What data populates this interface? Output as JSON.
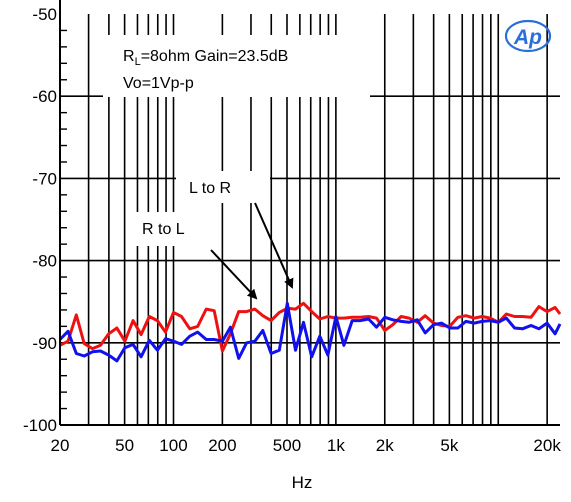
{
  "chart_data": {
    "type": "line",
    "xscale": "log",
    "xlim": [
      20,
      24000
    ],
    "ylim": [
      -100,
      -50
    ],
    "grid": true,
    "xlabel": "Hz",
    "ylabel": "",
    "x_ticks": [
      {
        "value": 20,
        "label": "20"
      },
      {
        "value": 50,
        "label": "50"
      },
      {
        "value": 100,
        "label": "100"
      },
      {
        "value": 200,
        "label": "200"
      },
      {
        "value": 500,
        "label": "500"
      },
      {
        "value": 1000,
        "label": "1k"
      },
      {
        "value": 2000,
        "label": "2k"
      },
      {
        "value": 5000,
        "label": "5k"
      },
      {
        "value": 20000,
        "label": "20k"
      }
    ],
    "y_ticks": [
      {
        "value": -50,
        "label": "-50"
      },
      {
        "value": -60,
        "label": "-60"
      },
      {
        "value": -70,
        "label": "-70"
      },
      {
        "value": -80,
        "label": "-80"
      },
      {
        "value": -90,
        "label": "-90"
      },
      {
        "value": -100,
        "label": "-100"
      }
    ],
    "annotations": {
      "condition_line1_prefix": "R",
      "condition_line1_sub": "L",
      "condition_line1_rest": "=8ohm Gain=23.5dB",
      "condition_line2": "Vo=1Vp-p",
      "label_l_to_r": "L to R",
      "label_r_to_l": "R to L",
      "logo": "Ap"
    },
    "series": [
      {
        "name": "R to L",
        "color": "#ee1111",
        "x": [
          20,
          22.4,
          25.2,
          28.2,
          31.7,
          35.5,
          39.9,
          44.8,
          50.2,
          56.4,
          63.2,
          71,
          79.6,
          89.3,
          100,
          112,
          126,
          141,
          159,
          178,
          200,
          224,
          252,
          282,
          317,
          355,
          399,
          448,
          502,
          564,
          632,
          710,
          796,
          893,
          1000,
          1120,
          1260,
          1410,
          1590,
          1780,
          2000,
          2240,
          2520,
          2820,
          3170,
          3550,
          3990,
          4480,
          5020,
          5640,
          6320,
          7100,
          7960,
          8930,
          10000,
          11200,
          12600,
          14100,
          15900,
          17800,
          20000,
          22400,
          24000
        ],
        "values": [
          -90.3,
          -89.8,
          -86.6,
          -90.1,
          -90.7,
          -90.3,
          -88.9,
          -88.2,
          -89.8,
          -87.3,
          -89.0,
          -86.8,
          -87.3,
          -88.7,
          -86.3,
          -86.8,
          -88.3,
          -88.0,
          -85.9,
          -86.1,
          -91.0,
          -88.9,
          -86.2,
          -86.2,
          -85.9,
          -86.7,
          -87.3,
          -86.3,
          -85.8,
          -85.9,
          -85.2,
          -86.2,
          -87.1,
          -86.8,
          -87.0,
          -87.0,
          -86.9,
          -86.9,
          -86.8,
          -87.0,
          -88.5,
          -87.8,
          -86.8,
          -87.0,
          -87.5,
          -86.7,
          -87.6,
          -87.9,
          -88.0,
          -86.9,
          -86.7,
          -87.0,
          -86.8,
          -87.0,
          -87.5,
          -86.5,
          -86.8,
          -86.8,
          -86.9,
          -85.6,
          -86.2,
          -85.7,
          -86.5
        ]
      },
      {
        "name": "L to R",
        "color": "#1111ee",
        "x": [
          20,
          22.4,
          25.2,
          28.2,
          31.7,
          35.5,
          39.9,
          44.8,
          50.2,
          56.4,
          63.2,
          71,
          79.6,
          89.3,
          100,
          112,
          126,
          141,
          159,
          178,
          200,
          224,
          252,
          282,
          317,
          355,
          399,
          448,
          502,
          564,
          632,
          710,
          796,
          893,
          1000,
          1120,
          1260,
          1410,
          1590,
          1780,
          2000,
          2240,
          2520,
          2820,
          3170,
          3550,
          3990,
          4480,
          5020,
          5640,
          6320,
          7100,
          7960,
          8930,
          10000,
          11200,
          12600,
          14100,
          15900,
          17800,
          20000,
          22400,
          24000
        ],
        "values": [
          -89.6,
          -88.6,
          -91.3,
          -91.6,
          -91.1,
          -91.0,
          -91.5,
          -92.2,
          -90.6,
          -90.2,
          -91.7,
          -89.7,
          -90.9,
          -89.5,
          -89.8,
          -90.2,
          -89.2,
          -88.7,
          -89.6,
          -89.6,
          -89.8,
          -88.1,
          -91.9,
          -90.0,
          -89.8,
          -88.5,
          -91.3,
          -90.9,
          -85.2,
          -90.9,
          -87.5,
          -91.7,
          -89.2,
          -91.5,
          -86.8,
          -90.3,
          -87.3,
          -87.3,
          -87.1,
          -88.1,
          -86.9,
          -87.2,
          -87.4,
          -87.5,
          -87.2,
          -88.8,
          -87.8,
          -87.6,
          -88.2,
          -88.2,
          -87.4,
          -87.6,
          -87.4,
          -87.3,
          -87.5,
          -87.0,
          -88.2,
          -88.3,
          -87.9,
          -88.3,
          -87.6,
          -88.9,
          -87.7
        ]
      }
    ]
  }
}
